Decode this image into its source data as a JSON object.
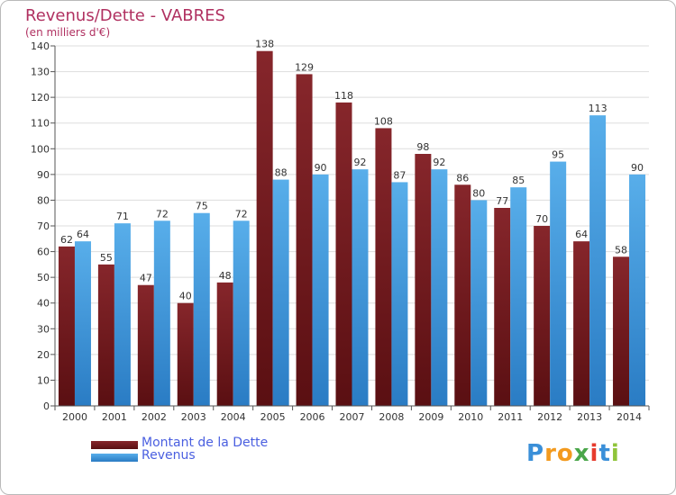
{
  "chart_data": {
    "type": "bar",
    "title": "Revenus/Dette - VABRES",
    "subtitle": "(en milliers d'€)",
    "categories": [
      "2000",
      "2001",
      "2002",
      "2003",
      "2004",
      "2005",
      "2006",
      "2007",
      "2008",
      "2009",
      "2010",
      "2011",
      "2012",
      "2013",
      "2014"
    ],
    "series": [
      {
        "name": "Montant de la Dette",
        "color": "#7a1d22",
        "values": [
          62,
          55,
          47,
          40,
          48,
          138,
          129,
          118,
          108,
          98,
          86,
          77,
          70,
          64,
          58
        ]
      },
      {
        "name": "Revenus",
        "color": "#3d9ce2",
        "values": [
          64,
          71,
          72,
          75,
          72,
          88,
          90,
          92,
          87,
          92,
          80,
          85,
          95,
          113,
          90
        ]
      }
    ],
    "ylim": [
      0,
      140
    ],
    "yticks": [
      0,
      10,
      20,
      30,
      40,
      50,
      60,
      70,
      80,
      90,
      100,
      110,
      120,
      130,
      140
    ],
    "grid": true,
    "legend": "bottom-left"
  },
  "logo": {
    "letters": [
      "P",
      "r",
      "o",
      "x",
      "i",
      "t",
      "i"
    ],
    "colors": [
      "#3a8fd8",
      "#f39a1e",
      "#f39a1e",
      "#4aa64a",
      "#e63b2e",
      "#3a8fd8",
      "#8fc43a"
    ]
  }
}
